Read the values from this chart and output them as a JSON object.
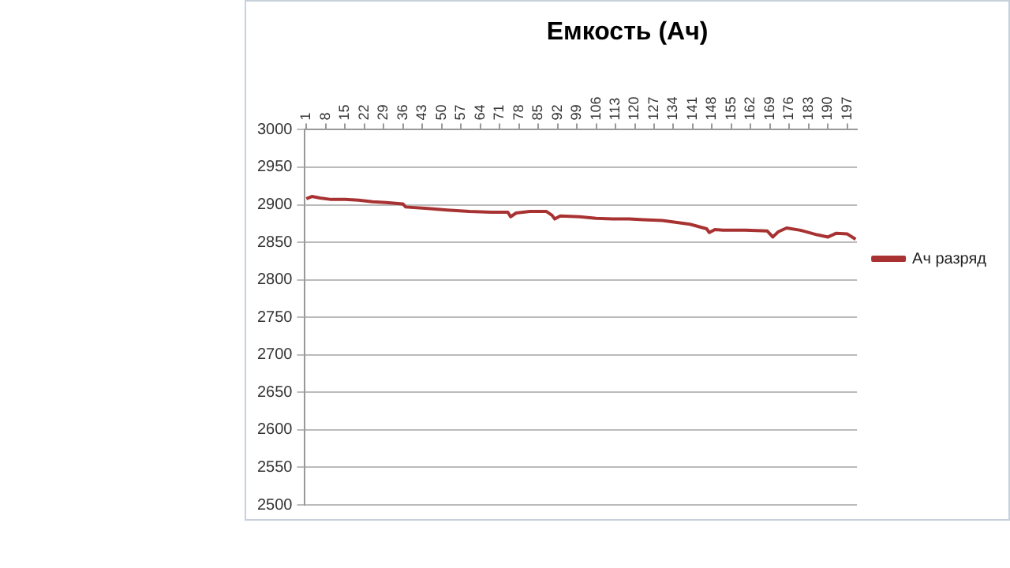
{
  "chart_data": {
    "type": "line",
    "title": "Емкость (Ач)",
    "series": [
      {
        "name": "Ач разряд",
        "color": "#a83232",
        "x": [
          1,
          3,
          6,
          10,
          15,
          20,
          25,
          30,
          36,
          37,
          45,
          52,
          60,
          68,
          74,
          75,
          77,
          82,
          88,
          90,
          91,
          93,
          100,
          106,
          112,
          118,
          123,
          130,
          140,
          146,
          147,
          149,
          152,
          160,
          168,
          170,
          172,
          175,
          180,
          186,
          190,
          193,
          197,
          200
        ],
        "values": [
          2908,
          2911,
          2909,
          2907,
          2907,
          2906,
          2904,
          2903,
          2901,
          2897,
          2895,
          2893,
          2891,
          2890,
          2890,
          2884,
          2889,
          2891,
          2891,
          2886,
          2881,
          2885,
          2884,
          2882,
          2881,
          2881,
          2880,
          2879,
          2874,
          2868,
          2863,
          2867,
          2866,
          2866,
          2865,
          2857,
          2864,
          2869,
          2866,
          2860,
          2857,
          2862,
          2861,
          2854
        ]
      }
    ],
    "xlim": [
      0.5,
      200.5
    ],
    "xticks": [
      1,
      8,
      15,
      22,
      29,
      36,
      43,
      50,
      57,
      64,
      71,
      78,
      85,
      92,
      99,
      106,
      113,
      120,
      127,
      134,
      141,
      148,
      155,
      162,
      169,
      176,
      183,
      190,
      197
    ],
    "ylim": [
      2500,
      3000
    ],
    "yticks": [
      2500,
      2550,
      2600,
      2650,
      2700,
      2750,
      2800,
      2850,
      2900,
      2950,
      3000
    ],
    "grid": "y",
    "legend": "right",
    "marker": "none",
    "line_style": "solid"
  }
}
